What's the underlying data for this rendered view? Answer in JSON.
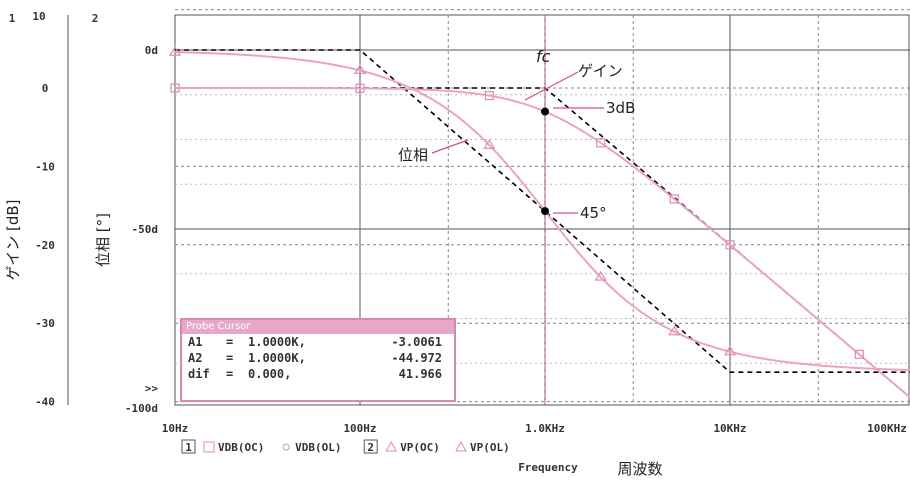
{
  "chart_data": {
    "type": "line",
    "title": "",
    "xlabel": "Frequency",
    "xlabel_jp": "周波数",
    "x_scale": "log",
    "xlim": [
      10,
      100000
    ],
    "x_ticks": [
      "10Hz",
      "100Hz",
      "1.0KHz",
      "10KHz",
      "100KHz"
    ],
    "y1": {
      "label": "ゲイン [dB]",
      "ticks": [
        "0",
        "-10",
        "-20",
        "-30",
        "-40"
      ],
      "ylim": [
        -45,
        10
      ],
      "top_tick": "10",
      "axis_number": "1"
    },
    "y2": {
      "label": "位相 [°]",
      "ticks": [
        "0d",
        "-50d",
        "-100d"
      ],
      "ylim": [
        -100,
        0
      ],
      "axis_number": "2"
    },
    "overflow_marker": ">>",
    "legend": [
      {
        "number": "1",
        "entries": [
          "VDB(OC)",
          "VDB(OL)"
        ]
      },
      {
        "number": "2",
        "entries": [
          "VP(OC)",
          "VP(OL)"
        ]
      }
    ],
    "series": [
      {
        "name": "VDB(OC)",
        "axis": "gain",
        "x": [
          10,
          100,
          500,
          1000,
          2000,
          5000,
          10000,
          50000,
          100000
        ],
        "values": [
          0,
          -0.04,
          -0.97,
          -3.0,
          -6.99,
          -14.15,
          -20.0,
          -33.98,
          -40.0
        ]
      },
      {
        "name": "VP(OC)",
        "axis": "phase",
        "x": [
          10,
          100,
          500,
          1000,
          2000,
          5000,
          10000,
          100000
        ],
        "values": [
          -0.6,
          -5.7,
          -26.6,
          -45,
          -63.4,
          -78.7,
          -84.3,
          -89.4
        ]
      }
    ],
    "asymptotes": [
      {
        "axis": "gain",
        "x": [
          10,
          1000,
          100000
        ],
        "values": [
          0,
          0,
          -40
        ]
      },
      {
        "axis": "phase",
        "x": [
          10,
          100,
          10000,
          100000
        ],
        "values": [
          0,
          0,
          -90,
          -90
        ]
      }
    ],
    "cursor_x": 1000,
    "markers": [
      {
        "axis": "gain",
        "x": 1000,
        "y": -3.0
      },
      {
        "axis": "phase",
        "x": 1000,
        "y": -45
      }
    ],
    "annotations": {
      "fc": "fc",
      "gain": "ゲイン",
      "phase": "位相",
      "db3": "3dB",
      "deg45": "45°"
    }
  },
  "probe_cursor": {
    "title": "Probe Cursor",
    "rows": [
      {
        "name": "A1",
        "eq": "=",
        "x": "1.0000K,",
        "y": "-3.0061"
      },
      {
        "name": "A2",
        "eq": "=",
        "x": "1.0000K,",
        "y": "-44.972"
      },
      {
        "name": "dif",
        "eq": "=",
        "x": "0.000,",
        "y": "41.966"
      }
    ]
  }
}
